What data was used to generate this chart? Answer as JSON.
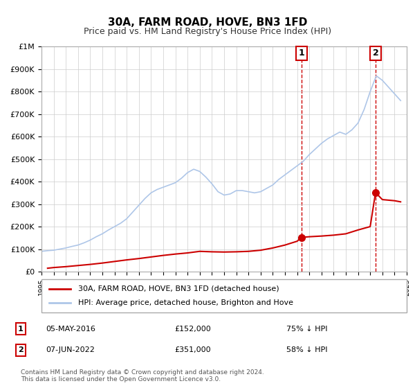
{
  "title": "30A, FARM ROAD, HOVE, BN3 1FD",
  "subtitle": "Price paid vs. HM Land Registry's House Price Index (HPI)",
  "xlabel": "",
  "ylabel": "",
  "ylim": [
    0,
    1000000
  ],
  "yticks": [
    0,
    100000,
    200000,
    300000,
    400000,
    500000,
    600000,
    700000,
    800000,
    900000,
    1000000
  ],
  "ytick_labels": [
    "£0",
    "£100K",
    "£200K",
    "£300K",
    "£400K",
    "£500K",
    "£600K",
    "£700K",
    "£800K",
    "£900K",
    "£1M"
  ],
  "background_color": "#ffffff",
  "grid_color": "#cccccc",
  "hpi_color": "#aec6e8",
  "sale_color": "#cc0000",
  "sale_marker_color": "#cc0000",
  "vline_color": "#cc0000",
  "annotation_box_color": "#cc0000",
  "sale1_x": 2016.35,
  "sale1_y": 152000,
  "sale1_label": "1",
  "sale1_date": "05-MAY-2016",
  "sale1_price": "£152,000",
  "sale1_pct": "75% ↓ HPI",
  "sale2_x": 2022.44,
  "sale2_y": 351000,
  "sale2_label": "2",
  "sale2_date": "07-JUN-2022",
  "sale2_price": "£351,000",
  "sale2_pct": "58% ↓ HPI",
  "legend_label1": "30A, FARM ROAD, HOVE, BN3 1FD (detached house)",
  "legend_label2": "HPI: Average price, detached house, Brighton and Hove",
  "footer1": "Contains HM Land Registry data © Crown copyright and database right 2024.",
  "footer2": "This data is licensed under the Open Government Licence v3.0.",
  "xmin": 1995,
  "xmax": 2025,
  "hpi_x": [
    1995,
    1995.5,
    1996,
    1996.5,
    1997,
    1997.5,
    1998,
    1998.5,
    1999,
    1999.5,
    2000,
    2000.5,
    2001,
    2001.5,
    2002,
    2002.5,
    2003,
    2003.5,
    2004,
    2004.5,
    2005,
    2005.5,
    2006,
    2006.5,
    2007,
    2007.5,
    2008,
    2008.5,
    2009,
    2009.5,
    2010,
    2010.5,
    2011,
    2011.5,
    2012,
    2012.5,
    2013,
    2013.5,
    2014,
    2014.5,
    2015,
    2015.5,
    2016,
    2016.5,
    2017,
    2017.5,
    2018,
    2018.5,
    2019,
    2019.5,
    2020,
    2020.5,
    2021,
    2021.5,
    2022,
    2022.5,
    2023,
    2023.5,
    2024,
    2024.5
  ],
  "hpi_y": [
    90000,
    93000,
    95000,
    100000,
    105000,
    112000,
    118000,
    128000,
    140000,
    155000,
    168000,
    185000,
    200000,
    215000,
    235000,
    265000,
    295000,
    325000,
    350000,
    365000,
    375000,
    385000,
    395000,
    415000,
    440000,
    455000,
    445000,
    420000,
    390000,
    355000,
    340000,
    345000,
    360000,
    360000,
    355000,
    350000,
    355000,
    370000,
    385000,
    410000,
    430000,
    450000,
    470000,
    490000,
    520000,
    545000,
    570000,
    590000,
    605000,
    620000,
    610000,
    630000,
    660000,
    720000,
    800000,
    870000,
    850000,
    820000,
    790000,
    760000
  ],
  "sale_x": [
    1995.5,
    1996.0,
    1997.0,
    1998.0,
    1999.0,
    2000.0,
    2001.0,
    2002.0,
    2003.0,
    2004.0,
    2005.0,
    2006.0,
    2007.0,
    2008.0,
    2009.0,
    2010.0,
    2011.0,
    2012.0,
    2013.0,
    2014.0,
    2015.0,
    2016.0,
    2016.35,
    2017.0,
    2018.0,
    2019.0,
    2020.0,
    2021.0,
    2022.0,
    2022.44,
    2023.0,
    2024.0,
    2024.5
  ],
  "sale_y": [
    15000,
    18000,
    22000,
    27000,
    32000,
    38000,
    45000,
    52000,
    58000,
    65000,
    72000,
    78000,
    83000,
    90000,
    88000,
    87000,
    88000,
    90000,
    95000,
    105000,
    118000,
    135000,
    152000,
    155000,
    158000,
    162000,
    168000,
    185000,
    200000,
    351000,
    320000,
    315000,
    310000
  ]
}
